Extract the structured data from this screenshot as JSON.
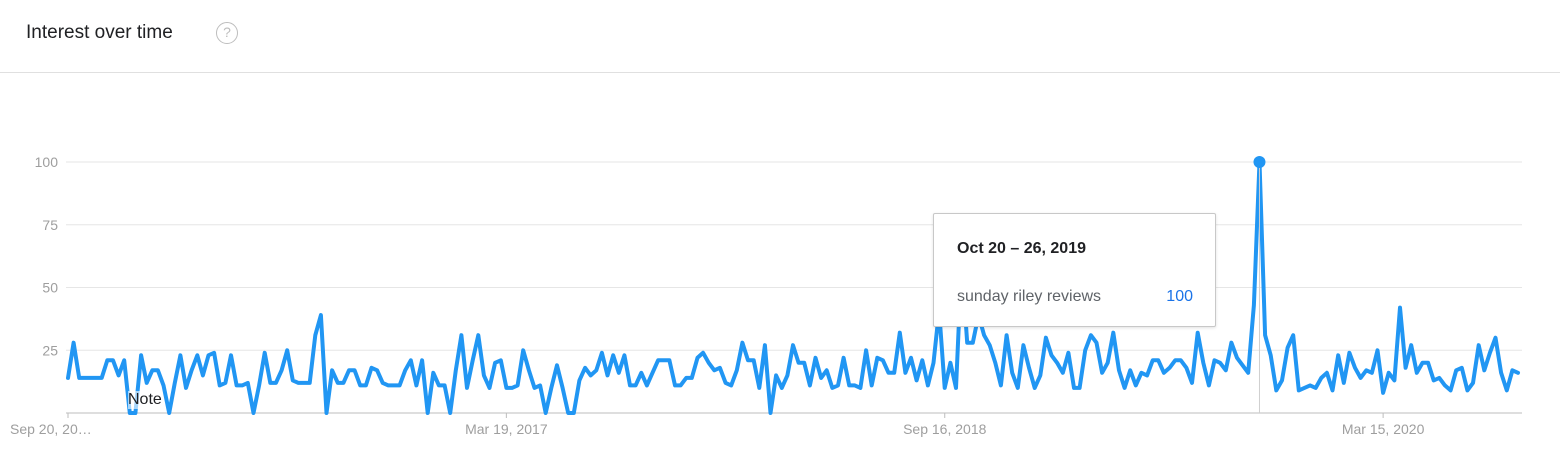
{
  "header": {
    "title": "Interest over time",
    "help_icon": "question-circle-icon"
  },
  "tooltip": {
    "date": "Oct 20 – 26, 2019",
    "term": "sunday riley reviews",
    "value": "100"
  },
  "note_label": "Note",
  "colors": {
    "line": "#2196f3",
    "grid": "#e6e6e6",
    "axis_text": "#9e9e9e",
    "tooltip_value": "#1a73e8"
  },
  "chart_data": {
    "type": "line",
    "grid": true,
    "ylim": [
      0,
      100
    ],
    "y_ticks": [
      "100",
      "75",
      "50",
      "25"
    ],
    "x_tick_labels": [
      "Sep 20, 20…",
      "Mar 19, 2017",
      "Sep 16, 2018",
      "Mar 15, 2020"
    ],
    "highlight": {
      "date": "Oct 20 – 26, 2019",
      "value": 100
    },
    "series": [
      {
        "name": "sunday riley reviews",
        "values": [
          14,
          28,
          14,
          14,
          14,
          14,
          14,
          21,
          21,
          15,
          21,
          0,
          0,
          23,
          12,
          17,
          17,
          11,
          0,
          12,
          23,
          10,
          17,
          23,
          15,
          23,
          24,
          11,
          12,
          23,
          11,
          11,
          12,
          0,
          11,
          24,
          12,
          12,
          17,
          25,
          13,
          12,
          12,
          12,
          31,
          39,
          0,
          17,
          12,
          12,
          17,
          17,
          11,
          11,
          18,
          17,
          12,
          11,
          11,
          11,
          17,
          21,
          11,
          21,
          0,
          16,
          11,
          11,
          0,
          17,
          31,
          10,
          21,
          31,
          15,
          10,
          20,
          21,
          10,
          10,
          11,
          25,
          17,
          10,
          11,
          0,
          10,
          19,
          10,
          0,
          0,
          13,
          18,
          15,
          17,
          24,
          15,
          23,
          16,
          23,
          11,
          11,
          16,
          11,
          16,
          21,
          21,
          21,
          11,
          11,
          14,
          14,
          22,
          24,
          20,
          17,
          18,
          12,
          11,
          17,
          28,
          21,
          21,
          10,
          27,
          0,
          15,
          10,
          15,
          27,
          20,
          20,
          11,
          22,
          14,
          17,
          10,
          11,
          22,
          11,
          11,
          10,
          25,
          11,
          22,
          21,
          16,
          16,
          32,
          16,
          22,
          13,
          21,
          11,
          20,
          41,
          10,
          20,
          10,
          60,
          28,
          28,
          39,
          31,
          27,
          20,
          11,
          31,
          16,
          10,
          27,
          18,
          10,
          15,
          30,
          23,
          20,
          16,
          24,
          10,
          10,
          25,
          31,
          28,
          16,
          20,
          32,
          17,
          10,
          17,
          11,
          16,
          15,
          21,
          21,
          16,
          18,
          21,
          21,
          18,
          12,
          32,
          20,
          11,
          21,
          20,
          17,
          28,
          22,
          19,
          16,
          43,
          100,
          31,
          23,
          9,
          13,
          26,
          31,
          9,
          10,
          11,
          10,
          14,
          16,
          9,
          23,
          12,
          24,
          18,
          14,
          17,
          16,
          25,
          8,
          16,
          13,
          42,
          18,
          27,
          16,
          20,
          20,
          13,
          14,
          11,
          9,
          17,
          18,
          9,
          12,
          27,
          17,
          24,
          30,
          16,
          9,
          17,
          16
        ]
      }
    ]
  }
}
